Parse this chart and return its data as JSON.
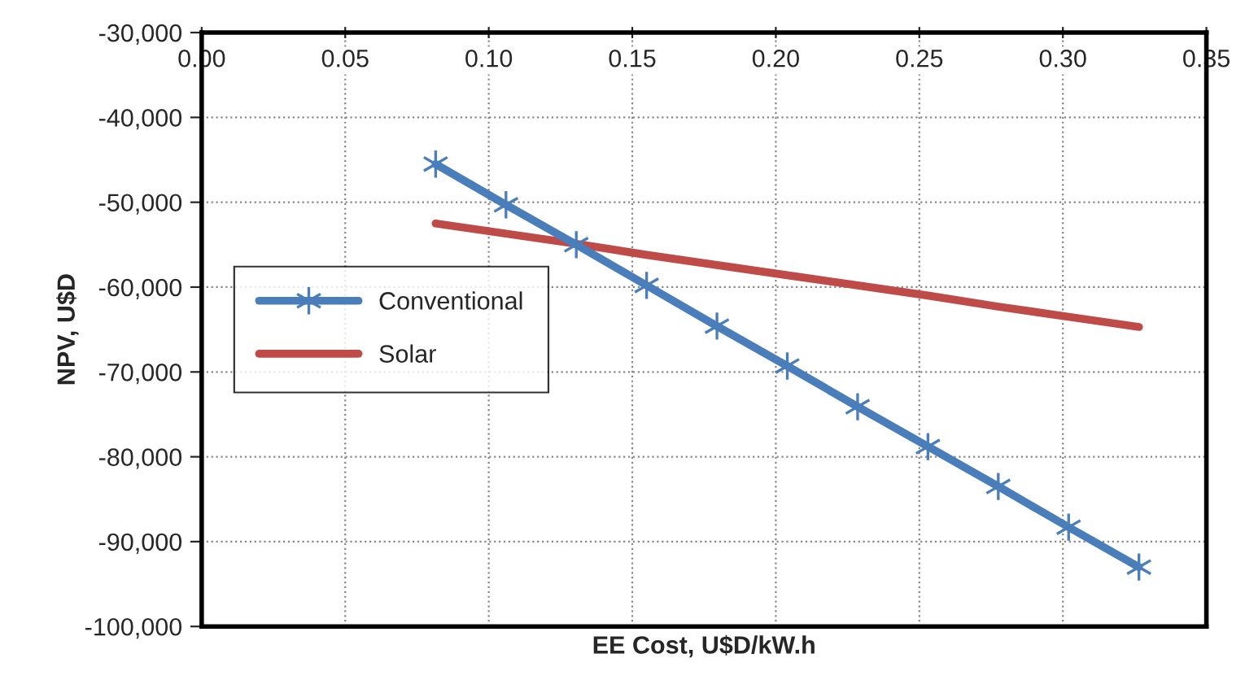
{
  "chart_data": {
    "type": "line",
    "xlabel": "EE Cost, U$D/kW.h",
    "ylabel": "NPV, U$D",
    "x": [
      0.0815,
      0.106,
      0.1305,
      0.155,
      0.1795,
      0.204,
      0.2285,
      0.253,
      0.2775,
      0.302,
      0.3265
    ],
    "series": [
      {
        "name": "Conventional",
        "color": "#4a7ebb",
        "marker": "cross",
        "values": [
          -45500,
          -50300,
          -55000,
          -59800,
          -64600,
          -69300,
          -74100,
          -78800,
          -83500,
          -88300,
          -93000
        ]
      },
      {
        "name": "Solar",
        "color": "#be4b48",
        "marker": "none",
        "values": [
          -52500,
          -53700,
          -54900,
          -56200,
          -57400,
          -58600,
          -59800,
          -61000,
          -62300,
          -63500,
          -64700
        ]
      }
    ],
    "xlim": [
      0,
      0.35
    ],
    "xticks": [
      {
        "value": 0,
        "label": "0.00"
      },
      {
        "value": 0.05,
        "label": "0.05"
      },
      {
        "value": 0.1,
        "label": "0.10"
      },
      {
        "value": 0.15,
        "label": "0.15"
      },
      {
        "value": 0.2,
        "label": "0.20"
      },
      {
        "value": 0.25,
        "label": "0.25"
      },
      {
        "value": 0.3,
        "label": "0.30"
      },
      {
        "value": 0.35,
        "label": "0.35"
      }
    ],
    "ylim": [
      -100000,
      -30000
    ],
    "yticks": [
      {
        "value": -100000,
        "label": "-100,000"
      },
      {
        "value": -90000,
        "label": "-90,000"
      },
      {
        "value": -80000,
        "label": "-80,000"
      },
      {
        "value": -70000,
        "label": "-70,000"
      },
      {
        "value": -60000,
        "label": "-60,000"
      },
      {
        "value": -50000,
        "label": "-50,000"
      },
      {
        "value": -40000,
        "label": "-40,000"
      },
      {
        "value": -30000,
        "label": "-30,000"
      }
    ],
    "grid": true,
    "legend": "center left",
    "line_style": "solid"
  }
}
